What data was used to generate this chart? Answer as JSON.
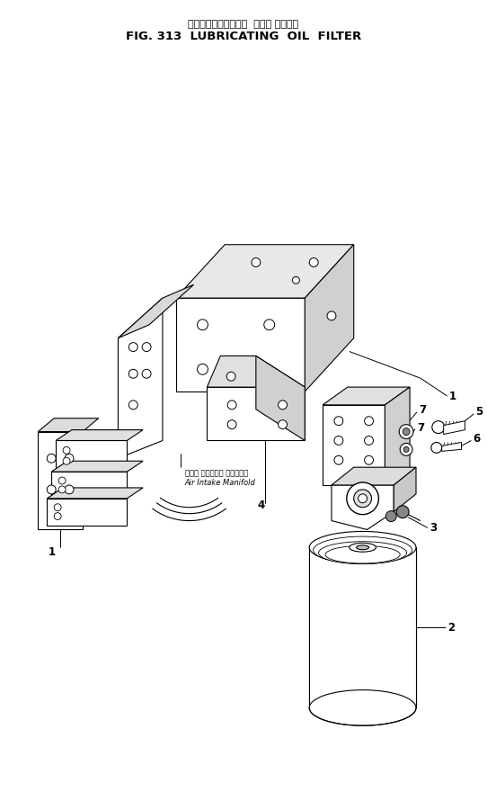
{
  "title_japanese": "ルーブリケーティング  オイル フィルタ",
  "title_english": "FIG. 313  LUBRICATING  OIL  FILTER",
  "background_color": "#ffffff",
  "line_color": "#000000",
  "fig_width": 5.42,
  "fig_height": 8.8,
  "dpi": 100
}
